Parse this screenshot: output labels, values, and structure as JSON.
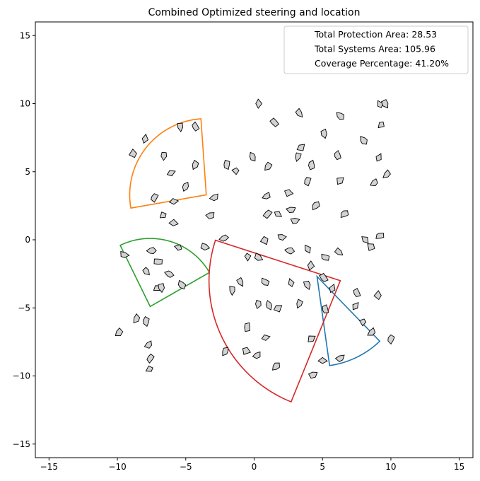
{
  "chart_data": {
    "type": "scatter",
    "title": "Combined Optimized steering and location",
    "xlabel": "",
    "ylabel": "",
    "xlim": [
      -16,
      16
    ],
    "ylim": [
      -16,
      16
    ],
    "xticks": [
      -15,
      -10,
      -5,
      0,
      5,
      10,
      15
    ],
    "yticks": [
      -15,
      -10,
      -5,
      0,
      5,
      10,
      15
    ],
    "xtick_labels": [
      "−15",
      "−10",
      "−5",
      "0",
      "5",
      "10",
      "15"
    ],
    "ytick_labels": [
      "−15",
      "−10",
      "−5",
      "0",
      "5",
      "10",
      "15"
    ],
    "grid": false,
    "legend": {
      "placement": "top-right",
      "entries": [
        "Total Protection Area: 28.53",
        "Total Systems Area: 105.96",
        "Coverage Percentage: 41.20%"
      ]
    },
    "sectors": [
      {
        "color": "#1f77b4",
        "center": [
          4.6,
          -2.7
        ],
        "radius": 6.6,
        "start_deg": -82,
        "end_deg": -46
      },
      {
        "color": "#ff7f0e",
        "center": [
          -3.5,
          3.3
        ],
        "radius": 5.6,
        "start_deg": 94,
        "end_deg": 190
      },
      {
        "color": "#2ca02c",
        "center": [
          -7.6,
          -4.9
        ],
        "radius": 5.0,
        "start_deg": 30,
        "end_deg": 116
      },
      {
        "color": "#d62728",
        "center": [
          6.3,
          -3.0
        ],
        "radius": 9.6,
        "start_deg": 162,
        "end_deg": 248
      }
    ],
    "markers": {
      "fill": "#d3d3d3",
      "edge": "#000000",
      "points": [
        [
          0.3,
          10.0
        ],
        [
          3.3,
          9.3
        ],
        [
          6.3,
          9.1
        ],
        [
          9.2,
          9.9
        ],
        [
          9.6,
          10.0
        ],
        [
          1.5,
          8.6
        ],
        [
          9.3,
          8.5
        ],
        [
          5.1,
          7.8
        ],
        [
          8.0,
          7.3
        ],
        [
          -8.0,
          7.4
        ],
        [
          -5.4,
          8.3
        ],
        [
          -4.3,
          8.3
        ],
        [
          -8.8,
          6.3
        ],
        [
          -6.6,
          6.2
        ],
        [
          -0.1,
          6.1
        ],
        [
          3.4,
          6.8
        ],
        [
          3.2,
          6.1
        ],
        [
          6.1,
          6.2
        ],
        [
          9.1,
          6.0
        ],
        [
          -4.3,
          5.5
        ],
        [
          -2.0,
          5.5
        ],
        [
          -1.3,
          5.1
        ],
        [
          1.0,
          5.4
        ],
        [
          4.2,
          5.5
        ],
        [
          -6.1,
          4.9
        ],
        [
          9.7,
          4.8
        ],
        [
          3.9,
          4.3
        ],
        [
          6.3,
          4.3
        ],
        [
          8.8,
          4.2
        ],
        [
          -5.0,
          3.9
        ],
        [
          2.5,
          3.5
        ],
        [
          0.9,
          3.2
        ],
        [
          -7.3,
          3.1
        ],
        [
          -5.9,
          2.8
        ],
        [
          -2.9,
          3.1
        ],
        [
          4.5,
          2.5
        ],
        [
          -6.6,
          1.8
        ],
        [
          -3.2,
          1.8
        ],
        [
          1.0,
          1.9
        ],
        [
          1.7,
          1.9
        ],
        [
          2.7,
          2.2
        ],
        [
          6.6,
          1.9
        ],
        [
          -5.9,
          1.2
        ],
        [
          3.0,
          1.4
        ],
        [
          -2.2,
          0.1
        ],
        [
          0.8,
          0.0
        ],
        [
          2.0,
          0.2
        ],
        [
          9.2,
          0.3
        ],
        [
          8.1,
          0.0
        ],
        [
          -9.5,
          -1.1
        ],
        [
          -7.5,
          -0.8
        ],
        [
          -5.5,
          -0.6
        ],
        [
          -3.6,
          -0.5
        ],
        [
          -7.0,
          -1.6
        ],
        [
          -0.5,
          -1.2
        ],
        [
          0.3,
          -1.3
        ],
        [
          2.6,
          -0.8
        ],
        [
          3.9,
          -0.7
        ],
        [
          6.2,
          -0.9
        ],
        [
          5.2,
          -1.3
        ],
        [
          8.6,
          -0.5
        ],
        [
          -7.9,
          -2.3
        ],
        [
          -6.2,
          -2.5
        ],
        [
          4.1,
          -1.9
        ],
        [
          -1.0,
          -3.1
        ],
        [
          0.8,
          -3.1
        ],
        [
          2.7,
          -3.2
        ],
        [
          3.9,
          -3.3
        ],
        [
          5.1,
          -2.8
        ],
        [
          -7.1,
          -3.5
        ],
        [
          -6.8,
          -3.5
        ],
        [
          -5.3,
          -3.3
        ],
        [
          5.7,
          -3.6
        ],
        [
          -1.6,
          -3.7
        ],
        [
          7.5,
          -3.9
        ],
        [
          9.1,
          -4.1
        ],
        [
          0.3,
          -4.7
        ],
        [
          1.1,
          -4.8
        ],
        [
          1.7,
          -5.0
        ],
        [
          3.3,
          -4.7
        ],
        [
          5.2,
          -5.1
        ],
        [
          7.4,
          -4.9
        ],
        [
          -8.6,
          -5.8
        ],
        [
          -7.9,
          -6.0
        ],
        [
          8.0,
          -6.0
        ],
        [
          -9.9,
          -6.8
        ],
        [
          -0.5,
          -6.4
        ],
        [
          0.8,
          -7.2
        ],
        [
          8.6,
          -6.8
        ],
        [
          10.0,
          -7.3
        ],
        [
          4.2,
          -7.3
        ],
        [
          -7.7,
          -7.7
        ],
        [
          -2.1,
          -8.2
        ],
        [
          -0.6,
          -8.1
        ],
        [
          0.2,
          -8.5
        ],
        [
          -7.6,
          -8.7
        ],
        [
          5.0,
          -8.9
        ],
        [
          6.3,
          -8.7
        ],
        [
          1.6,
          -9.3
        ],
        [
          -7.6,
          -9.5
        ],
        [
          4.3,
          -9.9
        ]
      ]
    }
  }
}
